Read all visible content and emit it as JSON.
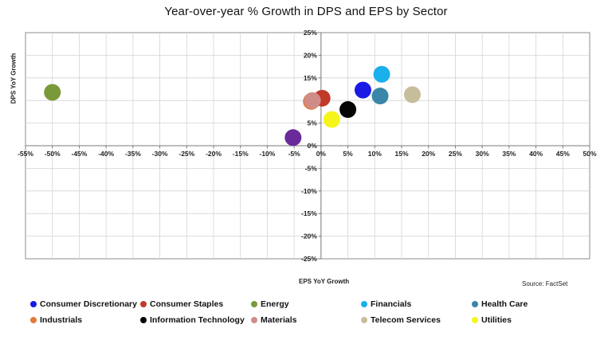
{
  "page": {
    "title": "Year-over-year % Growth in DPS and EPS by Sector",
    "source": "Source: FactSet"
  },
  "chart_data": {
    "type": "scatter",
    "title": "Year-over-year % Growth in DPS and EPS by Sector",
    "xlabel": "EPS YoY Growth",
    "ylabel": "DPS YoY Growth",
    "xlim": [
      -55,
      50
    ],
    "ylim": [
      -25,
      25
    ],
    "x_ticks": [
      "-55%",
      "-50%",
      "-45%",
      "-40%",
      "-35%",
      "-30%",
      "-25%",
      "-20%",
      "-15%",
      "-10%",
      "-5%",
      "0%",
      "5%",
      "10%",
      "15%",
      "20%",
      "25%",
      "30%",
      "35%",
      "40%",
      "45%",
      "50%"
    ],
    "y_ticks": [
      "25%",
      "20%",
      "15%",
      "10%",
      "5%",
      "0%",
      "-5%",
      "-10%",
      "-15%",
      "-20%",
      "-25%"
    ],
    "grid": true,
    "legend_position": "bottom",
    "series": [
      {
        "name": "Consumer Discretionary",
        "color": "#1a1ae6",
        "x": 7.8,
        "y": 12.3
      },
      {
        "name": "Consumer Staples",
        "color": "#c0392b",
        "x": 0.2,
        "y": 10.5
      },
      {
        "name": "Energy",
        "color": "#7a9a3a",
        "x": -50.0,
        "y": 11.8
      },
      {
        "name": "Financials",
        "color": "#1ab0ec",
        "x": 11.3,
        "y": 15.8
      },
      {
        "name": "Health Care",
        "color": "#3a86a8",
        "x": 11.0,
        "y": 11.0
      },
      {
        "name": "Industrials",
        "color": "#e07b39",
        "x": -1.8,
        "y": 9.8
      },
      {
        "name": "Information Technology",
        "color": "#050505",
        "x": 5.0,
        "y": 8.0
      },
      {
        "name": "Materials",
        "color": "#d08c86",
        "x": -1.6,
        "y": 10.0
      },
      {
        "name": "Telecom Services",
        "color": "#c8bd9a",
        "x": 17.0,
        "y": 11.3
      },
      {
        "name": "Utilities",
        "color": "#f5f51a",
        "x": 2.0,
        "y": 5.8
      },
      {
        "name": "",
        "color": "#6a2a9a",
        "x": -5.2,
        "y": 1.8
      }
    ]
  }
}
